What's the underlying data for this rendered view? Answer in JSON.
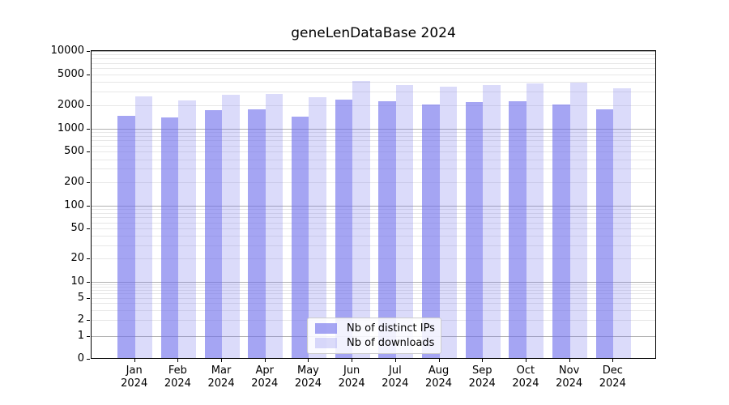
{
  "title": "geneLenDataBase 2024",
  "chart_data": {
    "type": "bar",
    "title": "geneLenDataBase 2024",
    "categories": [
      "Jan",
      "Feb",
      "Mar",
      "Apr",
      "May",
      "Jun",
      "Jul",
      "Aug",
      "Sep",
      "Oct",
      "Nov",
      "Dec"
    ],
    "xtick_year": "2024",
    "series": [
      {
        "name": "Nb of distinct IPs",
        "color": "rgba(110,110,235,0.62)",
        "values": [
          1480,
          1420,
          1760,
          1790,
          1440,
          2430,
          2290,
          2100,
          2230,
          2300,
          2070,
          1790
        ]
      },
      {
        "name": "Nb of downloads",
        "color": "rgba(110,110,235,0.25)",
        "values": [
          2650,
          2340,
          2790,
          2880,
          2610,
          4230,
          3710,
          3550,
          3720,
          3900,
          4000,
          3400
        ]
      }
    ],
    "yscale": "log-with-zero",
    "ylim": [
      0,
      10000
    ],
    "yticks": [
      0,
      1,
      2,
      5,
      10,
      20,
      50,
      100,
      200,
      500,
      1000,
      2000,
      5000,
      10000
    ],
    "grid": "both",
    "legend_position": "lower center"
  },
  "colors": {
    "ips_bar_hex_over_white": "#a5a5f3",
    "downloads_bar_hex_over_white": "#dbdbfa",
    "major_grid": "#b0b0b0",
    "minor_grid": "#e7e7e7",
    "spine": "#000000",
    "legend_border": "#cccccc"
  }
}
